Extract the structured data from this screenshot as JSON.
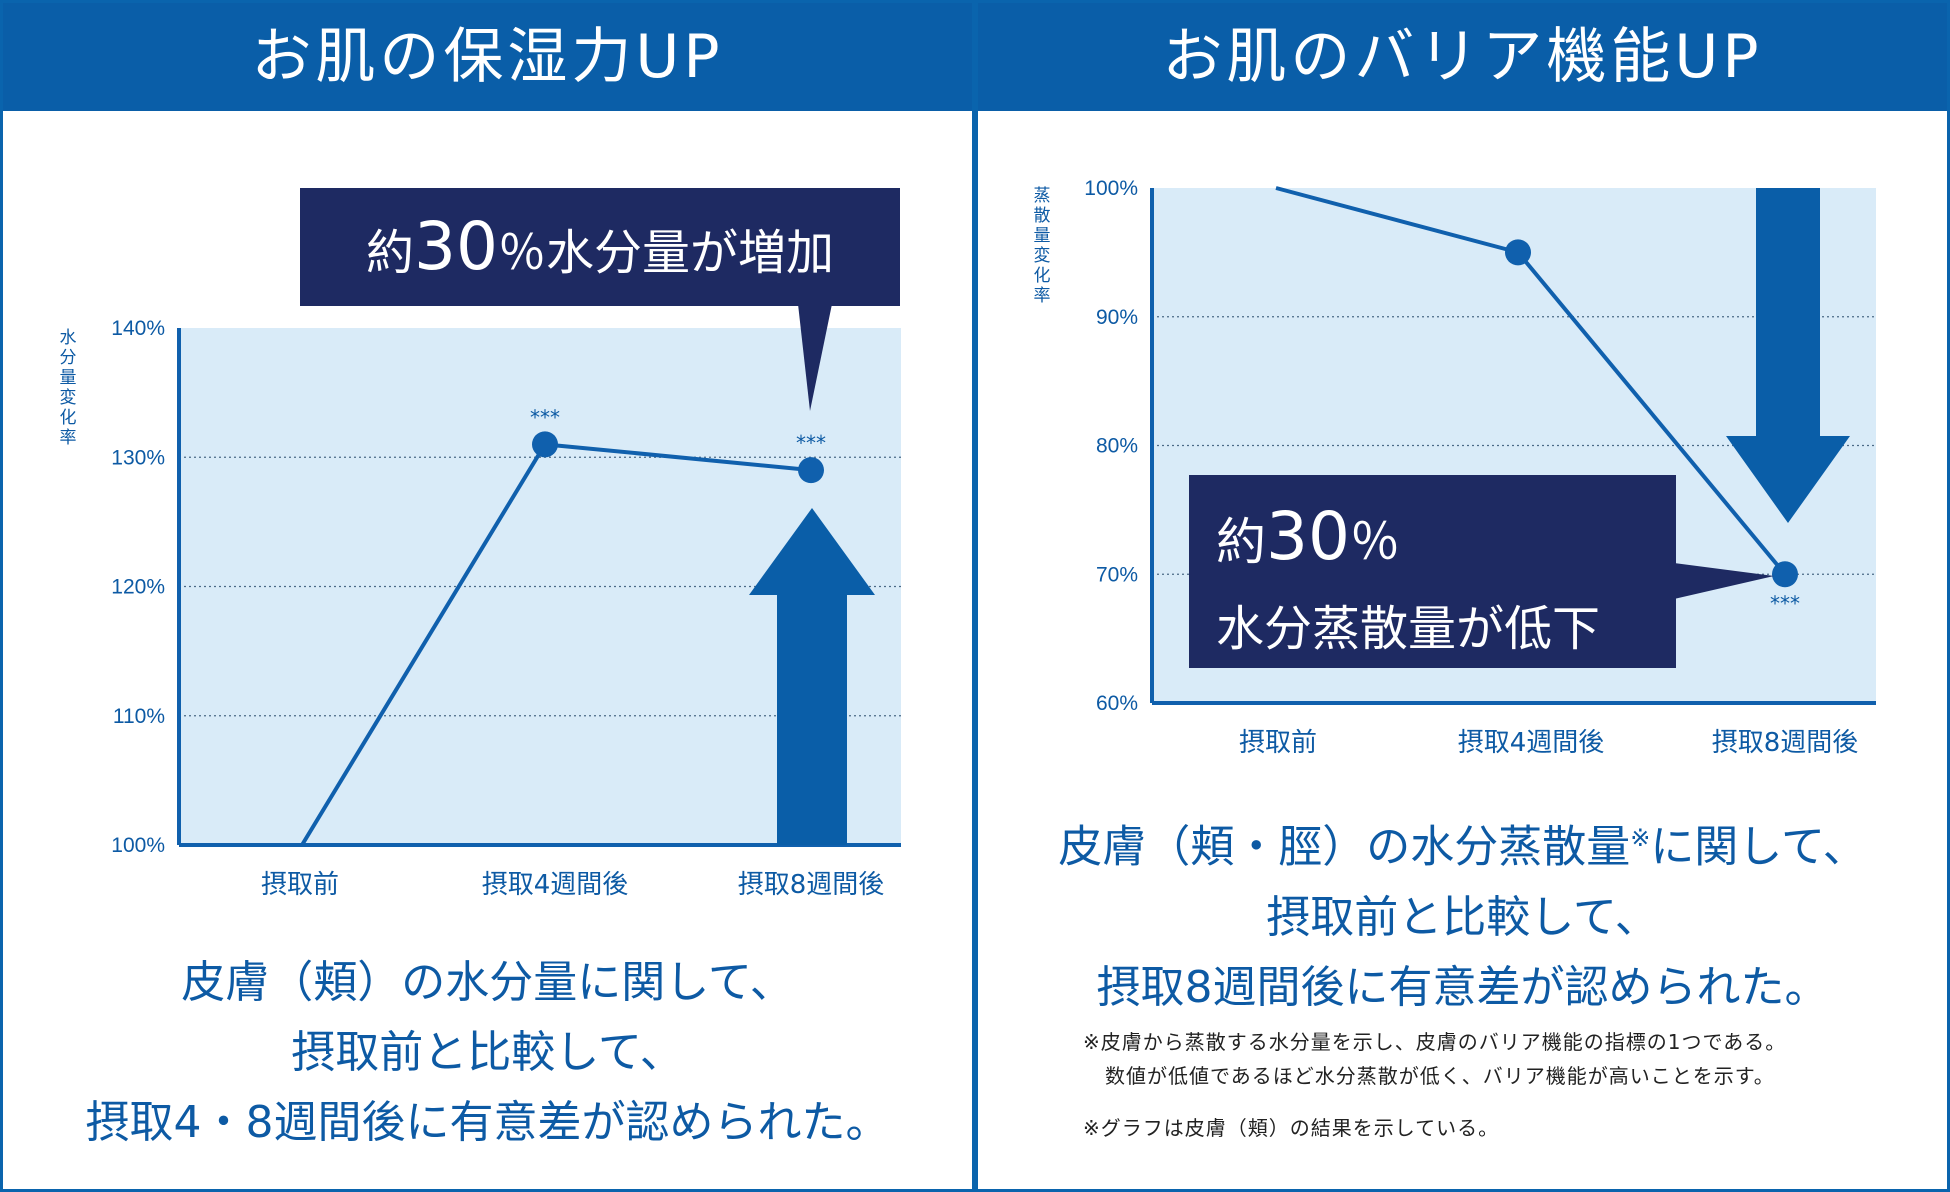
{
  "colors": {
    "header": "#0a5ea8",
    "line": "#1060ad",
    "plot_bg": "#d9ebf8",
    "callout": "#1e2a62",
    "arrow": "#0a5ea8"
  },
  "left": {
    "title": "お肌の保湿力UP",
    "callout": {
      "prefix": "約",
      "big": "30",
      "suffix": "％水分量が増加"
    },
    "caption": [
      "皮膚（頬）の水分量に関して、",
      "摂取前と比較して、",
      "摂取4・8週間後に有意差が認められた。"
    ]
  },
  "right": {
    "title": "お肌のバリア機能UP",
    "callout": {
      "prefix": "約",
      "big": "30",
      "suffix": "％",
      "line2": "水分蒸散量が低下"
    },
    "caption": [
      "皮膚（頬・脛）の水分蒸散量",
      "※",
      "に関して、",
      "摂取前と比較して、",
      "摂取8週間後に有意差が認められた。"
    ],
    "notes": [
      "※皮膚から蒸散する水分量を示し、皮膚のバリア機能の指標の1つである。",
      "数値が低値であるほど水分蒸散が低く、バリア機能が高いことを示す。",
      "※グラフは皮膚（頬）の結果を示している。"
    ]
  },
  "chart_data": [
    {
      "type": "line",
      "ylabel": "水分量変化率",
      "categories": [
        "摂取前",
        "摂取4週間後",
        "摂取8週間後"
      ],
      "values": [
        100,
        131,
        129
      ],
      "ylim": [
        100,
        140
      ],
      "yticks": [
        100,
        110,
        120,
        130,
        140
      ],
      "ytick_labels": [
        "100%",
        "110%",
        "120%",
        "130%",
        "140%"
      ],
      "annotations": [
        "",
        "***",
        "***"
      ],
      "grid": true
    },
    {
      "type": "line",
      "ylabel": "蒸散量変化率",
      "categories": [
        "摂取前",
        "摂取4週間後",
        "摂取8週間後"
      ],
      "values": [
        100,
        95,
        70
      ],
      "ylim": [
        60,
        100
      ],
      "yticks": [
        60,
        70,
        80,
        90,
        100
      ],
      "ytick_labels": [
        "60%",
        "70%",
        "80%",
        "90%",
        "100%"
      ],
      "annotations": [
        "",
        "",
        "***"
      ],
      "grid": true
    }
  ]
}
